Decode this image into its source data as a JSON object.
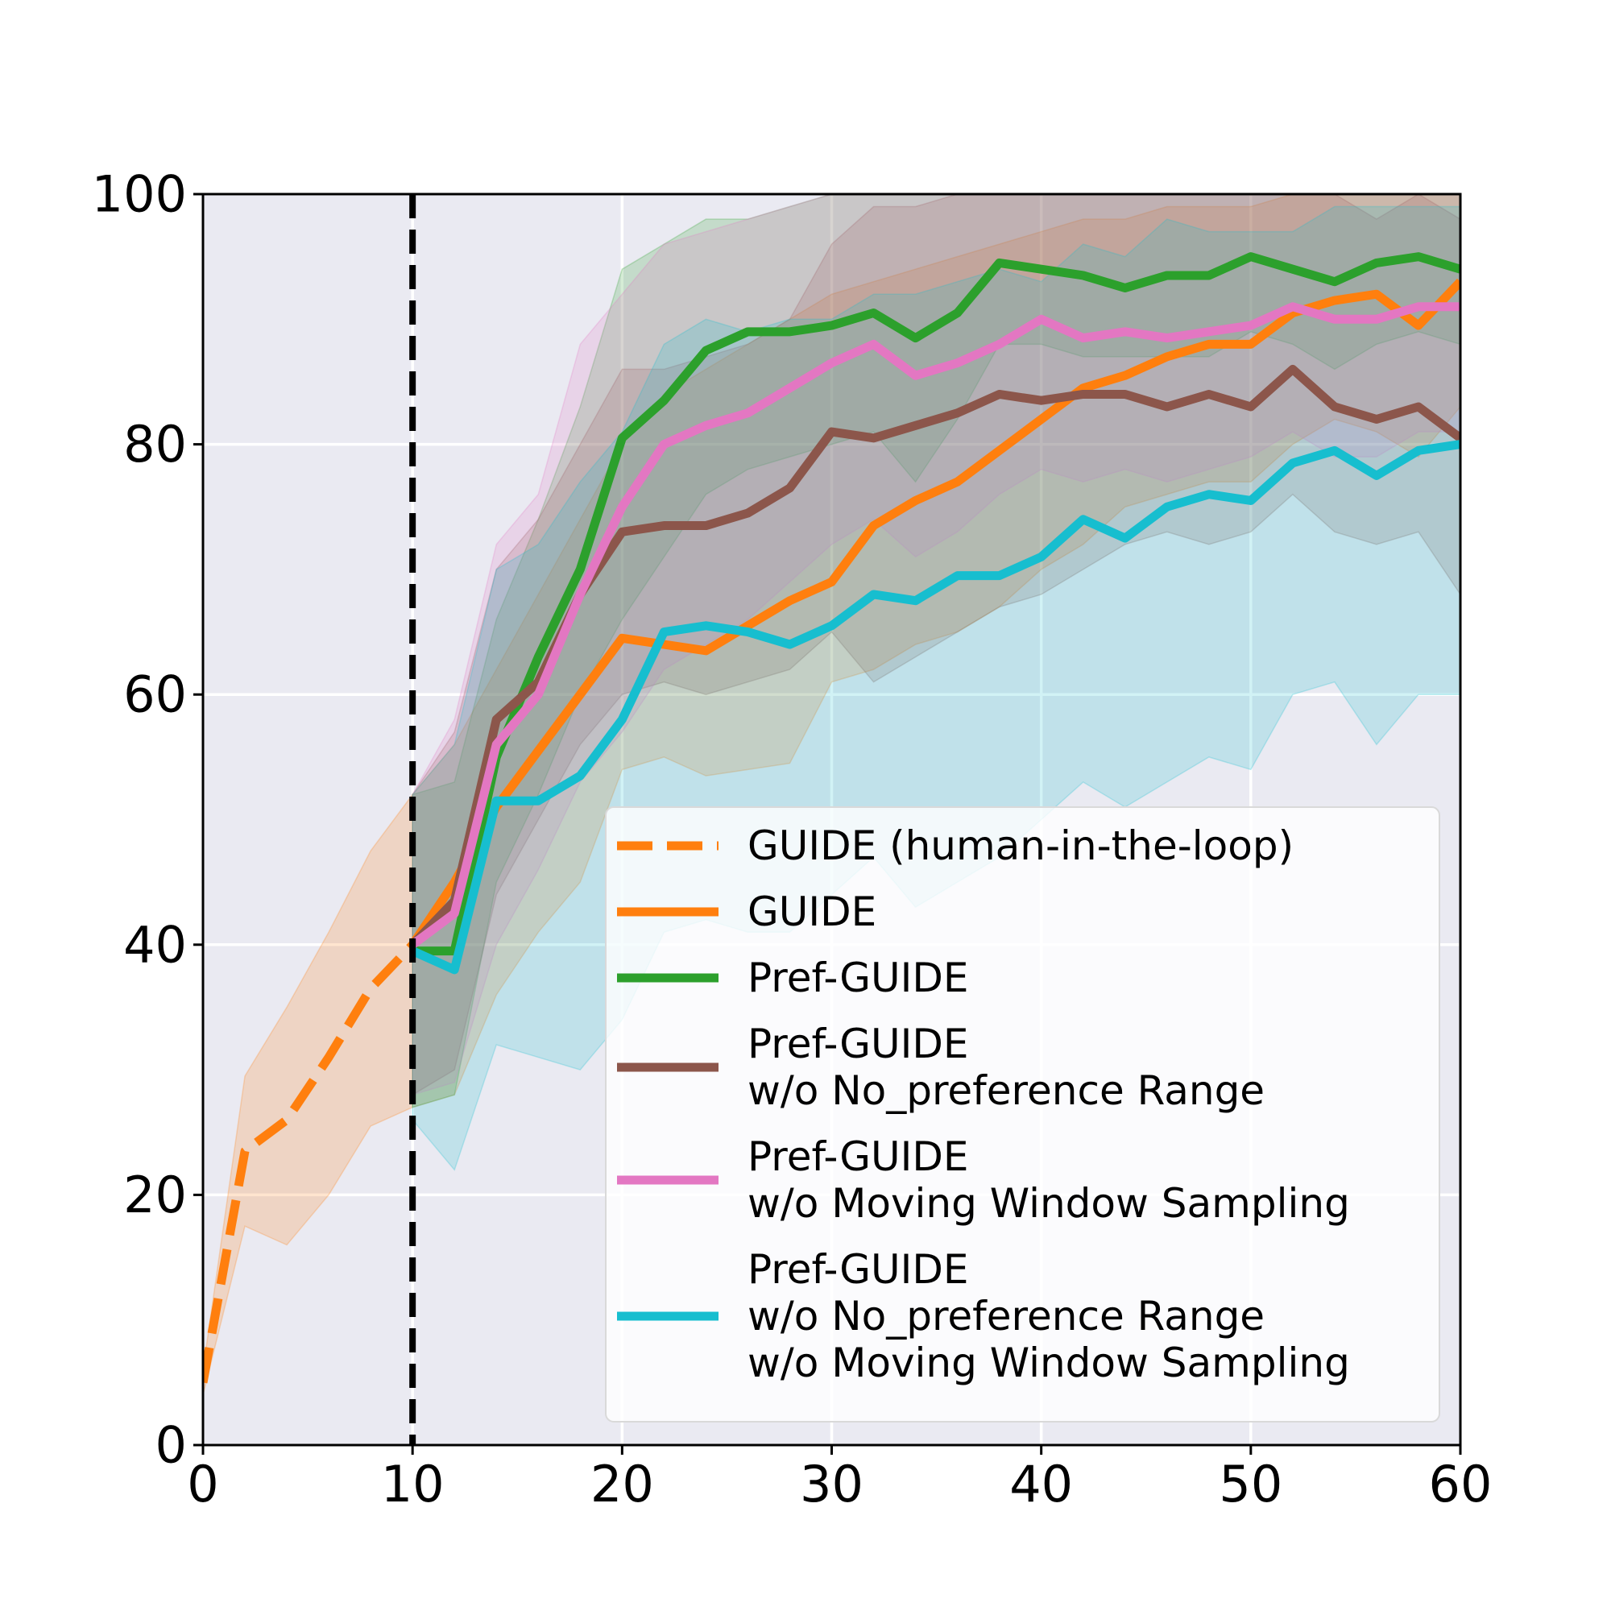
{
  "chart_data": {
    "type": "line",
    "title": "",
    "xlabel": "",
    "ylabel": "",
    "xlim": [
      0,
      60
    ],
    "ylim": [
      0,
      100
    ],
    "xticks": [
      0,
      10,
      20,
      30,
      40,
      50,
      60
    ],
    "yticks": [
      0,
      20,
      40,
      60,
      80,
      100
    ],
    "grid": true,
    "legend_position": "lower-right",
    "vline": {
      "x": 10,
      "style": "dashed",
      "color": "#000000"
    },
    "series": [
      {
        "name": "GUIDE (human-in-the-loop)",
        "color": "#ff7f0e",
        "style": "dashed",
        "x": [
          0,
          2,
          4,
          6,
          8,
          10
        ],
        "y": [
          5,
          23.5,
          26,
          31,
          36.5,
          40
        ],
        "lower": [
          4,
          17.5,
          16,
          20,
          25.5,
          27
        ],
        "upper": [
          6,
          29.5,
          35,
          41,
          47.5,
          52
        ]
      },
      {
        "name": "GUIDE",
        "color": "#ff7f0e",
        "style": "solid",
        "x": [
          10,
          12,
          14,
          16,
          18,
          20,
          22,
          24,
          26,
          28,
          30,
          32,
          34,
          36,
          38,
          40,
          42,
          44,
          46,
          48,
          50,
          52,
          54,
          56,
          58,
          60
        ],
        "y": [
          40,
          45,
          51,
          55.5,
          60,
          64.5,
          64,
          63.5,
          65.5,
          67.5,
          69,
          73.5,
          75.5,
          77,
          79.5,
          82,
          84.5,
          85.5,
          87,
          88,
          88,
          90.5,
          91.5,
          92,
          89.5,
          93
        ],
        "lower": [
          27,
          28,
          36,
          41,
          45,
          54,
          55,
          53.5,
          54,
          54.5,
          61,
          62,
          64,
          65,
          67,
          70,
          72,
          75,
          76,
          77,
          77,
          80,
          82,
          81,
          79,
          83
        ],
        "upper": [
          52,
          56,
          62,
          68,
          74,
          80,
          84,
          86,
          88,
          90,
          92,
          93,
          94,
          95,
          96,
          97,
          98,
          98,
          99,
          99,
          99,
          100,
          100,
          100,
          100,
          100
        ]
      },
      {
        "name": "Pref-GUIDE",
        "color": "#2ca02c",
        "style": "solid",
        "x": [
          10,
          12,
          14,
          16,
          18,
          20,
          22,
          24,
          26,
          28,
          30,
          32,
          34,
          36,
          38,
          40,
          42,
          44,
          46,
          48,
          50,
          52,
          54,
          56,
          58,
          60
        ],
        "y": [
          39.5,
          39.5,
          55,
          63,
          70,
          80.5,
          83.5,
          87.5,
          89,
          89,
          89.5,
          90.5,
          88.5,
          90.5,
          94.5,
          94,
          93.5,
          92.5,
          93.5,
          93.5,
          95,
          94,
          93,
          94.5,
          95,
          94
        ],
        "lower": [
          27,
          28,
          45,
          52,
          60,
          66,
          71,
          76,
          78,
          79,
          80,
          81,
          77,
          82,
          88,
          88,
          87,
          87,
          87,
          87,
          89,
          88,
          86,
          88,
          89,
          88
        ],
        "upper": [
          52,
          53,
          66,
          74,
          83,
          94,
          96,
          98,
          98,
          99,
          100,
          100,
          100,
          100,
          100,
          100,
          100,
          100,
          100,
          100,
          100,
          100,
          100,
          100,
          100,
          100
        ]
      },
      {
        "name": "Pref-GUIDE\nw/o No_preference Range",
        "color": "#8c564b",
        "style": "solid",
        "x": [
          10,
          12,
          14,
          16,
          18,
          20,
          22,
          24,
          26,
          28,
          30,
          32,
          34,
          36,
          38,
          40,
          42,
          44,
          46,
          48,
          50,
          52,
          54,
          56,
          58,
          60
        ],
        "y": [
          40,
          43.5,
          58,
          61,
          68,
          73,
          73.5,
          73.5,
          74.5,
          76.5,
          81,
          80.5,
          81.5,
          82.5,
          84,
          83.5,
          84,
          84,
          83,
          84,
          83,
          86,
          83,
          82,
          83,
          80.5
        ],
        "lower": [
          28,
          30,
          44,
          50,
          56,
          60,
          61,
          60,
          61,
          62,
          65,
          61,
          63,
          65,
          67,
          68,
          70,
          72,
          73,
          72,
          73,
          76,
          73,
          72,
          73,
          68
        ],
        "upper": [
          52,
          57,
          70,
          74,
          80,
          86,
          86,
          87,
          88,
          90,
          96,
          99,
          99,
          100,
          100,
          100,
          100,
          100,
          100,
          100,
          100,
          100,
          100,
          98,
          100,
          98
        ]
      },
      {
        "name": "Pref-GUIDE\nw/o Moving Window Sampling",
        "color": "#e377c2",
        "style": "solid",
        "x": [
          10,
          12,
          14,
          16,
          18,
          20,
          22,
          24,
          26,
          28,
          30,
          32,
          34,
          36,
          38,
          40,
          42,
          44,
          46,
          48,
          50,
          52,
          54,
          56,
          58,
          60
        ],
        "y": [
          40,
          42.5,
          56,
          60,
          68,
          75,
          80,
          81.5,
          82.5,
          84.5,
          86.5,
          88,
          85.5,
          86.5,
          88,
          90,
          88.5,
          89,
          88.5,
          89,
          89.5,
          91,
          90,
          90,
          91,
          91
        ],
        "lower": [
          28,
          29,
          40,
          46,
          53,
          57,
          62,
          64,
          66,
          69,
          72,
          74,
          71,
          73,
          76,
          78,
          77,
          78,
          77,
          78,
          79,
          81,
          79,
          79,
          81,
          81
        ],
        "upper": [
          52,
          58,
          72,
          76,
          88,
          92,
          96,
          97,
          98,
          99,
          100,
          100,
          100,
          100,
          100,
          100,
          100,
          100,
          100,
          100,
          100,
          100,
          100,
          100,
          100,
          100
        ]
      },
      {
        "name": "Pref-GUIDE\nw/o No_preference Range\nw/o Moving Window Sampling",
        "color": "#17becf",
        "style": "solid",
        "x": [
          10,
          12,
          14,
          16,
          18,
          20,
          22,
          24,
          26,
          28,
          30,
          32,
          34,
          36,
          38,
          40,
          42,
          44,
          46,
          48,
          50,
          52,
          54,
          56,
          58,
          60
        ],
        "y": [
          39.5,
          38,
          51.5,
          51.5,
          53.5,
          58,
          65,
          65.5,
          65,
          64,
          65.5,
          68,
          67.5,
          69.5,
          69.5,
          71,
          74,
          72.5,
          75,
          76,
          75.5,
          78.5,
          79.5,
          77.5,
          79.5,
          80
        ],
        "lower": [
          26,
          22,
          32,
          31,
          30,
          34,
          41,
          42,
          41,
          41,
          44,
          47,
          43,
          45,
          47,
          50,
          53,
          51,
          53,
          55,
          54,
          60,
          61,
          56,
          60,
          60
        ],
        "upper": [
          52,
          56,
          70,
          72,
          77,
          81,
          88,
          90,
          89,
          90,
          90,
          92,
          92,
          93,
          94,
          93,
          96,
          95,
          98,
          97,
          97,
          97,
          99,
          99,
          99,
          99
        ]
      }
    ],
    "legend_entries": [
      {
        "label_lines": [
          "GUIDE (human-in-the-loop)"
        ],
        "color": "#ff7f0e",
        "style": "dashed"
      },
      {
        "label_lines": [
          "GUIDE"
        ],
        "color": "#ff7f0e",
        "style": "solid"
      },
      {
        "label_lines": [
          "Pref-GUIDE"
        ],
        "color": "#2ca02c",
        "style": "solid"
      },
      {
        "label_lines": [
          "Pref-GUIDE",
          "w/o No_preference Range"
        ],
        "color": "#8c564b",
        "style": "solid"
      },
      {
        "label_lines": [
          "Pref-GUIDE",
          "w/o Moving Window Sampling"
        ],
        "color": "#e377c2",
        "style": "solid"
      },
      {
        "label_lines": [
          "Pref-GUIDE",
          "w/o No_preference Range",
          "w/o Moving Window Sampling"
        ],
        "color": "#17becf",
        "style": "solid"
      }
    ],
    "colors": {
      "plot_background": "#eaeaf2",
      "grid": "#ffffff",
      "axes": "#000000"
    }
  }
}
